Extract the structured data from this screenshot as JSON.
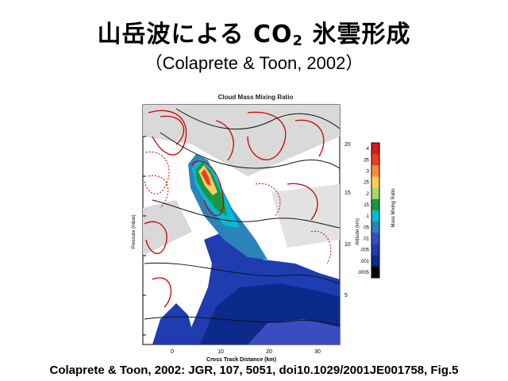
{
  "slide": {
    "title_main": "山岳波による CO",
    "title_sub": "2",
    "title_tail": " 氷雲形成",
    "subtitle": "（Colaprete & Toon, 2002）",
    "caption": "Colaprete & Toon, 2002: JGR, 107, 5051, doi10.1029/2001JE001758, Fig.5"
  },
  "figure": {
    "title": "Cloud Mass Mixing Ratio",
    "xlabel": "Cross Track Distance (km)",
    "ylabel_left": "Pressure (mbar)",
    "ylabel_right": "Altitude (km)",
    "x_ticks": [
      "0",
      "10",
      "20",
      "30"
    ],
    "alt_ticks": [
      "20",
      "15",
      "10",
      "5"
    ],
    "colorbar_label": "Mass Mixing Ratio",
    "colorbar_ticks": [
      ".4",
      ".35",
      ".3",
      ".25",
      ".2",
      ".15",
      ".1",
      ".05",
      ".01",
      ".005",
      ".001",
      ".0005"
    ],
    "colorbar_colors": [
      "#d7191c",
      "#f03b20",
      "#fd8d3c",
      "#fecc5c",
      "#a6d96a",
      "#1a9641",
      "#00bcd4",
      "#2b83ba",
      "#3b4cc0",
      "#1f3cb0",
      "#0b2a8a",
      "#000000"
    ],
    "colors": {
      "contour_red": "#cc0000",
      "contour_black": "#111111",
      "panel_bg": "#d9d9d9"
    }
  }
}
